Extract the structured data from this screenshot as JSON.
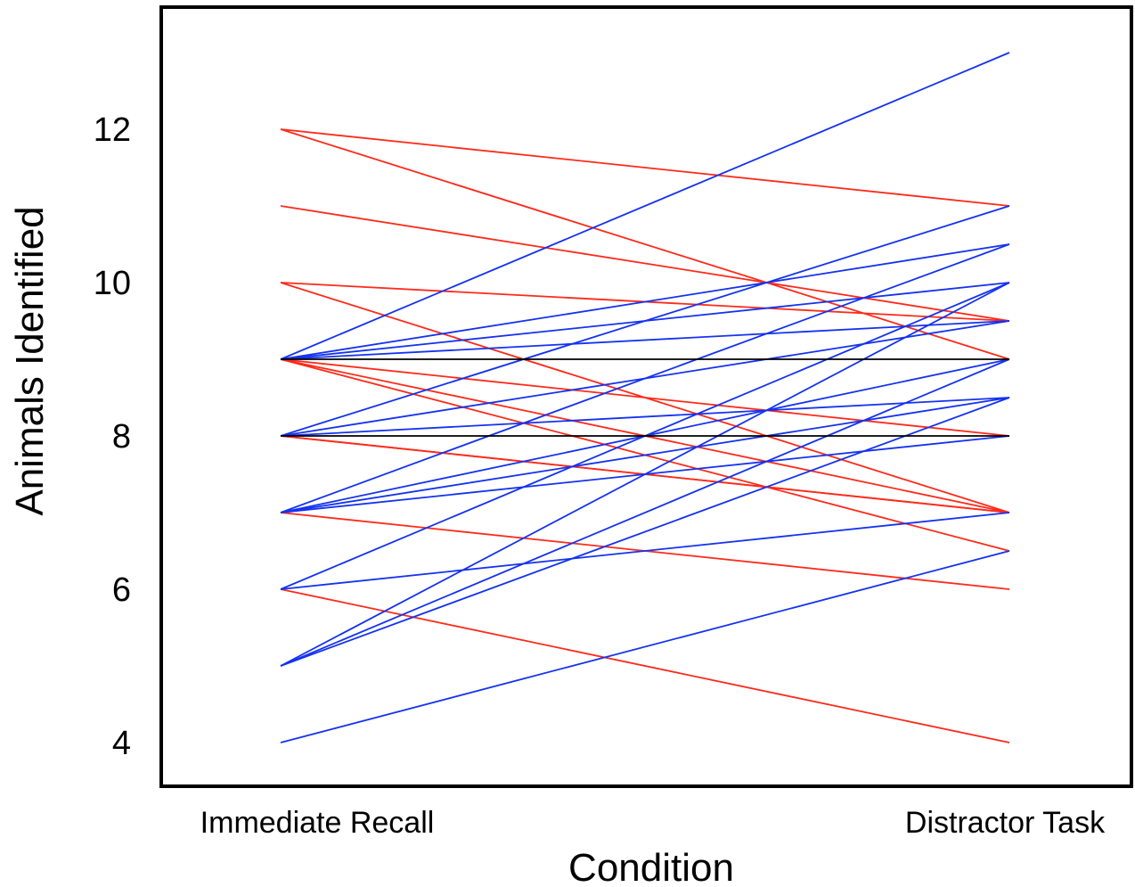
{
  "chart_data": {
    "type": "line",
    "subtype": "paired-slope",
    "categories": [
      "Immediate Recall",
      "Distractor Task"
    ],
    "xlabel": "Condition",
    "ylabel": "Animals Identified",
    "ylim": [
      3.8,
      13.8
    ],
    "yticks": [
      4,
      6,
      8,
      10,
      12
    ],
    "grid": false,
    "colors": {
      "decrease": "#ff2a1a",
      "increase": "#1432f0",
      "no_change": "#000000"
    },
    "series": [
      {
        "values": [
          12,
          11
        ],
        "color": "#ff2a1a"
      },
      {
        "values": [
          12,
          9
        ],
        "color": "#ff2a1a"
      },
      {
        "values": [
          11,
          9.5
        ],
        "color": "#ff2a1a"
      },
      {
        "values": [
          10,
          9.5
        ],
        "color": "#ff2a1a"
      },
      {
        "values": [
          10,
          7
        ],
        "color": "#ff2a1a"
      },
      {
        "values": [
          9,
          8
        ],
        "color": "#ff2a1a"
      },
      {
        "values": [
          9,
          7
        ],
        "color": "#ff2a1a"
      },
      {
        "values": [
          9,
          6.5
        ],
        "color": "#ff2a1a"
      },
      {
        "values": [
          8,
          7
        ],
        "color": "#ff2a1a"
      },
      {
        "values": [
          8,
          7
        ],
        "color": "#ff2a1a"
      },
      {
        "values": [
          7,
          6
        ],
        "color": "#ff2a1a"
      },
      {
        "values": [
          6,
          4
        ],
        "color": "#ff2a1a"
      },
      {
        "values": [
          9,
          13
        ],
        "color": "#1432f0"
      },
      {
        "values": [
          9,
          10.5
        ],
        "color": "#1432f0"
      },
      {
        "values": [
          9,
          10
        ],
        "color": "#1432f0"
      },
      {
        "values": [
          9,
          9.5
        ],
        "color": "#1432f0"
      },
      {
        "values": [
          8,
          11
        ],
        "color": "#1432f0"
      },
      {
        "values": [
          8,
          9.5
        ],
        "color": "#1432f0"
      },
      {
        "values": [
          8,
          8.5
        ],
        "color": "#1432f0"
      },
      {
        "values": [
          7,
          10.5
        ],
        "color": "#1432f0"
      },
      {
        "values": [
          7,
          9
        ],
        "color": "#1432f0"
      },
      {
        "values": [
          7,
          8.5
        ],
        "color": "#1432f0"
      },
      {
        "values": [
          7,
          8
        ],
        "color": "#1432f0"
      },
      {
        "values": [
          6,
          10
        ],
        "color": "#1432f0"
      },
      {
        "values": [
          6,
          7
        ],
        "color": "#1432f0"
      },
      {
        "values": [
          5,
          10
        ],
        "color": "#1432f0"
      },
      {
        "values": [
          5,
          9
        ],
        "color": "#1432f0"
      },
      {
        "values": [
          5,
          8.5
        ],
        "color": "#1432f0"
      },
      {
        "values": [
          4,
          6.5
        ],
        "color": "#1432f0"
      },
      {
        "values": [
          9,
          9
        ],
        "color": "#000000"
      },
      {
        "values": [
          8,
          8
        ],
        "color": "#000000"
      }
    ]
  }
}
